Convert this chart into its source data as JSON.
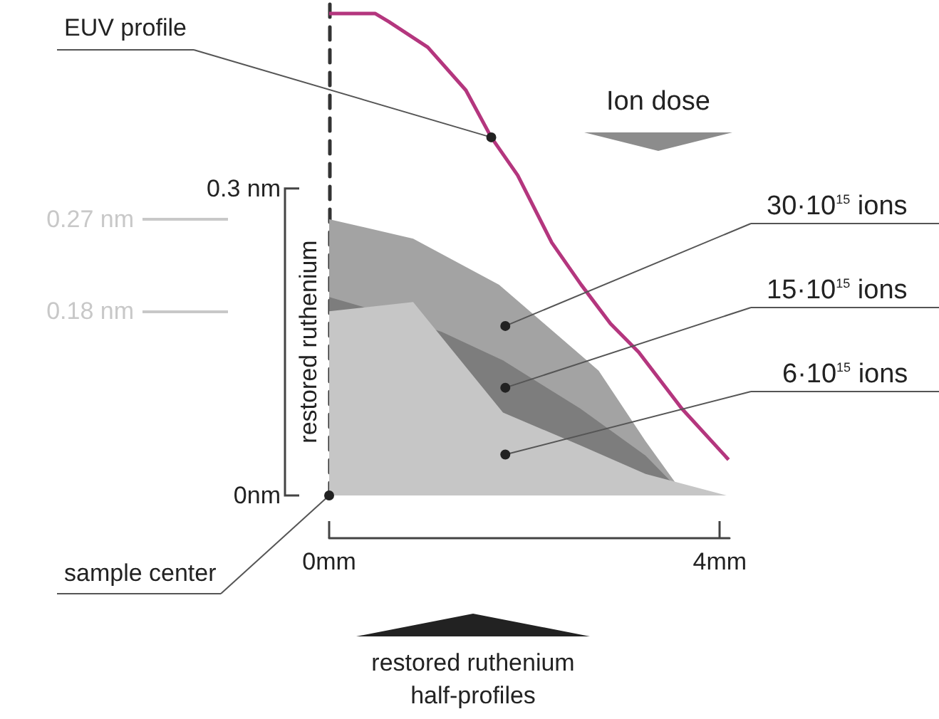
{
  "chart_data": {
    "type": "area",
    "ylabel": "restored ruthenium",
    "legend_title": "Ion dose",
    "xlim": [
      0,
      4.1
    ],
    "xticks": [
      {
        "value": 0,
        "label": "0mm"
      },
      {
        "value": 4,
        "label": "4mm"
      }
    ],
    "ylim": [
      0,
      0.48
    ],
    "yticks": [
      {
        "value": 0,
        "label": "0nm"
      },
      {
        "value": 0.3,
        "label": "0.3 nm"
      }
    ],
    "marker": "none",
    "grid": false,
    "series": [
      {
        "name": "EUV profile",
        "type": "line",
        "color": "#b4367e",
        "x": [
          0,
          0.47,
          0.61,
          1.01,
          1.4,
          1.66,
          1.93,
          2.28,
          2.58,
          2.88,
          3.17,
          3.61,
          4.09
        ],
        "values": [
          0.471,
          0.471,
          0.463,
          0.438,
          0.396,
          0.35,
          0.313,
          0.247,
          0.206,
          0.168,
          0.14,
          0.085,
          0.035
        ]
      },
      {
        "name": "30·10$^{15}$ ions",
        "color": "#a3a3a3",
        "x": [
          0,
          0.86,
          1.74,
          2.76,
          3.24,
          3.64
        ],
        "values": [
          0.27,
          0.251,
          0.206,
          0.122,
          0.053,
          0
        ]
      },
      {
        "name": "15·10$^{15}$ ions",
        "color": "#7d7d7d",
        "x": [
          0,
          0.32,
          1.15,
          1.78,
          2.57,
          3.24,
          3.64
        ],
        "values": [
          0.194,
          0.185,
          0.16,
          0.132,
          0.085,
          0.039,
          0
        ]
      },
      {
        "name": "6·10$^{15}$ ions",
        "color": "#c6c6c6",
        "x": [
          0,
          0.86,
          1.78,
          2.57,
          3.24,
          4.07
        ],
        "values": [
          0.18,
          0.189,
          0.081,
          0.049,
          0.021,
          0
        ]
      }
    ],
    "ref_lines": [
      {
        "axis": "y",
        "value": 0.27,
        "label": "0.27 nm",
        "color": "#c8c8c8"
      },
      {
        "axis": "y",
        "value": 0.18,
        "label": "0.18 nm",
        "color": "#c8c8c8"
      }
    ],
    "annotations": [
      {
        "text": "sample center",
        "x": 0,
        "y": 0
      },
      "restored ruthenium half-profiles"
    ]
  }
}
